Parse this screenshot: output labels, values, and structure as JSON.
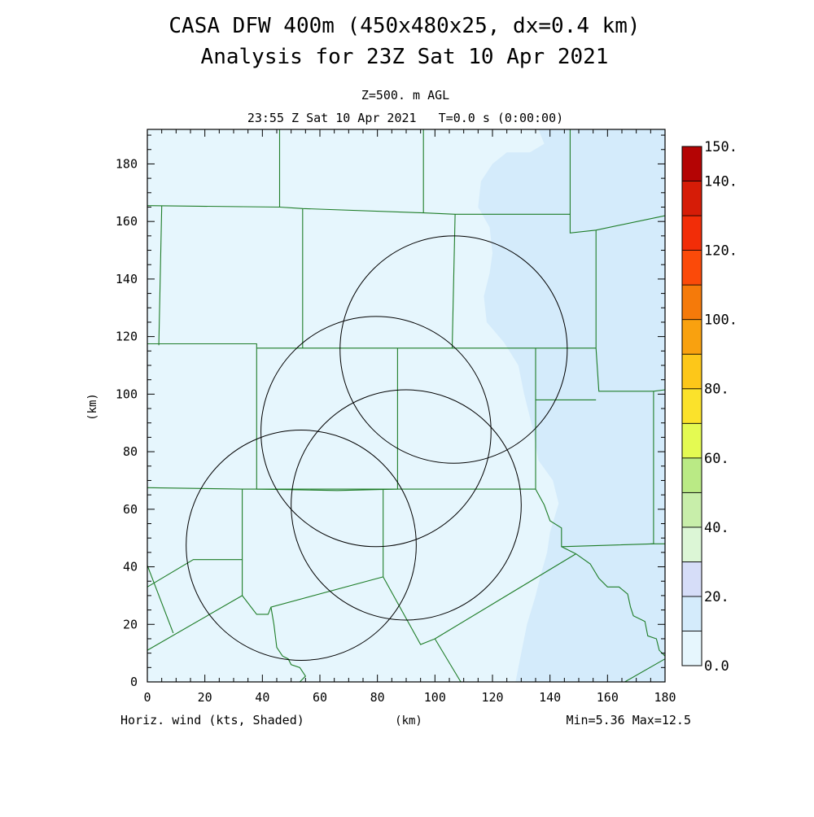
{
  "chart_data": {
    "type": "heatmap",
    "title": "CASA DFW 400m (450x480x25, dx=0.4 km)",
    "subtitle": "Analysis for 23Z Sat 10 Apr 2021",
    "level_label": "Z=500. m AGL",
    "time_label": "23:55 Z Sat 10 Apr 2021   T=0.0 s (0:00:00)",
    "xlabel": "(km)",
    "ylabel": "(km)",
    "xlim": [
      0,
      180
    ],
    "ylim": [
      0,
      192
    ],
    "x_ticks": [
      0,
      20,
      40,
      60,
      80,
      100,
      120,
      140,
      160,
      180
    ],
    "y_ticks": [
      0,
      20,
      40,
      60,
      80,
      100,
      120,
      140,
      160,
      180
    ],
    "x_tick_labels": [
      "0",
      "20",
      "40",
      "60",
      "80",
      "100",
      "120",
      "140",
      "160",
      "180"
    ],
    "y_tick_labels": [
      "0",
      "20",
      "40",
      "60",
      "80",
      "100",
      "120",
      "140",
      "160",
      "180"
    ],
    "grid": false,
    "field_label": "Horiz. wind (kts, Shaded)",
    "stats_label": "Min=5.36 Max=12.5",
    "colorbar": {
      "levels": [
        0,
        10,
        20,
        30,
        40,
        50,
        60,
        70,
        80,
        90,
        100,
        110,
        120,
        130,
        140,
        150
      ],
      "labels": [
        {
          "value": 0,
          "text": "0.0"
        },
        {
          "value": 20,
          "text": "20."
        },
        {
          "value": 40,
          "text": "40."
        },
        {
          "value": 60,
          "text": "60."
        },
        {
          "value": 80,
          "text": "80."
        },
        {
          "value": 100,
          "text": "100."
        },
        {
          "value": 120,
          "text": "120."
        },
        {
          "value": 140,
          "text": "140."
        },
        {
          "value": 150,
          "text": "150."
        }
      ],
      "colors": [
        "#e6f6fd",
        "#d4ebfb",
        "#d6ddf8",
        "#dcf6d6",
        "#c8eeaa",
        "#baea85",
        "#e4fa52",
        "#fbe22b",
        "#fdc719",
        "#f9a10f",
        "#f57a0a",
        "#fb4a09",
        "#f22d08",
        "#d61c07",
        "#b40404"
      ]
    },
    "shaded_regions": [
      {
        "level_range": [
          5.36,
          10
        ],
        "color": "#e6f6fd",
        "description_key": "base"
      },
      {
        "level_range": [
          10,
          12.5
        ],
        "color": "#d4ebfb",
        "outline": [
          [
            112,
            192
          ],
          [
            136,
            192
          ],
          [
            138,
            187
          ],
          [
            133,
            184
          ],
          [
            125,
            184
          ],
          [
            120,
            180
          ],
          [
            116,
            174
          ],
          [
            115,
            165
          ],
          [
            119,
            158
          ],
          [
            120,
            149
          ],
          [
            119,
            142
          ],
          [
            117,
            134
          ],
          [
            118,
            125
          ],
          [
            124,
            118
          ],
          [
            129,
            110
          ],
          [
            131,
            100
          ],
          [
            134,
            88
          ],
          [
            136,
            77
          ],
          [
            141,
            70
          ],
          [
            143,
            62
          ],
          [
            140,
            52
          ],
          [
            139,
            45
          ],
          [
            137,
            38
          ],
          [
            135,
            30
          ],
          [
            132,
            20
          ],
          [
            130,
            10
          ],
          [
            128,
            0
          ],
          [
            180,
            0
          ],
          [
            180,
            192
          ]
        ]
      }
    ],
    "range_rings": [
      {
        "center": [
          106.5,
          115.5
        ],
        "radius": 39.5
      },
      {
        "center": [
          79.5,
          87.0
        ],
        "radius": 40.0
      },
      {
        "center": [
          90.0,
          61.5
        ],
        "radius": 40.0
      },
      {
        "center": [
          53.5,
          47.5
        ],
        "radius": 40.0
      }
    ],
    "county_boundaries": [
      [
        [
          0,
          165.5
        ],
        [
          46,
          165
        ],
        [
          54,
          164.5
        ],
        [
          96,
          163
        ],
        [
          107,
          162.5
        ],
        [
          147,
          162.5
        ],
        [
          147,
          156
        ],
        [
          156,
          157
        ],
        [
          180,
          162
        ]
      ],
      [
        [
          46,
          192
        ],
        [
          46,
          165
        ]
      ],
      [
        [
          96,
          192
        ],
        [
          96,
          163
        ]
      ],
      [
        [
          147,
          192
        ],
        [
          147,
          162.5
        ]
      ],
      [
        [
          5,
          165.5
        ],
        [
          4,
          117
        ]
      ],
      [
        [
          54,
          164.5
        ],
        [
          54,
          116
        ]
      ],
      [
        [
          107,
          162.5
        ],
        [
          106,
          116
        ]
      ],
      [
        [
          156,
          157
        ],
        [
          156,
          116
        ],
        [
          157,
          101
        ],
        [
          176,
          101
        ],
        [
          180,
          101.5
        ]
      ],
      [
        [
          0,
          117.5
        ],
        [
          38,
          117.5
        ],
        [
          38,
          67
        ],
        [
          66,
          66.5
        ],
        [
          87,
          67
        ]
      ],
      [
        [
          38,
          116
        ],
        [
          54,
          116
        ],
        [
          106,
          116
        ],
        [
          135,
          116
        ],
        [
          156,
          116
        ]
      ],
      [
        [
          87,
          116
        ],
        [
          87,
          67
        ]
      ],
      [
        [
          135,
          116
        ],
        [
          135,
          67
        ]
      ],
      [
        [
          135,
          98
        ],
        [
          156,
          98
        ]
      ],
      [
        [
          0,
          67.5
        ],
        [
          33,
          67
        ],
        [
          87,
          67
        ],
        [
          135,
          67
        ]
      ],
      [
        [
          33,
          67
        ],
        [
          33,
          42.5
        ],
        [
          16,
          42.5
        ],
        [
          0,
          33
        ]
      ],
      [
        [
          33,
          42.5
        ],
        [
          33,
          30
        ]
      ],
      [
        [
          0,
          11
        ],
        [
          33,
          30
        ],
        [
          38,
          23.5
        ],
        [
          42,
          23.5
        ],
        [
          43,
          26
        ],
        [
          82,
          36.5
        ]
      ],
      [
        [
          82,
          36.5
        ],
        [
          82,
          67
        ]
      ],
      [
        [
          82,
          36.5
        ],
        [
          95,
          13
        ],
        [
          100,
          15
        ],
        [
          109,
          0
        ]
      ],
      [
        [
          9,
          17
        ],
        [
          0,
          40.5
        ]
      ],
      [
        [
          135,
          67
        ],
        [
          138,
          61.5
        ],
        [
          140,
          56
        ],
        [
          144,
          53.5
        ],
        [
          144,
          47
        ],
        [
          149,
          44.5
        ]
      ],
      [
        [
          100,
          15
        ],
        [
          149,
          44.5
        ]
      ],
      [
        [
          144,
          47
        ],
        [
          176,
          48
        ],
        [
          176,
          101
        ]
      ],
      [
        [
          149,
          44.5
        ],
        [
          154,
          41
        ],
        [
          157,
          36
        ],
        [
          160,
          33
        ],
        [
          164,
          33
        ],
        [
          167,
          30.5
        ],
        [
          168,
          26
        ],
        [
          169,
          23
        ],
        [
          173,
          21
        ],
        [
          174,
          16
        ],
        [
          177,
          15
        ],
        [
          178,
          11
        ],
        [
          180,
          9
        ]
      ],
      [
        [
          166,
          0
        ],
        [
          180,
          8
        ]
      ],
      [
        [
          175,
          48
        ],
        [
          180,
          48
        ]
      ],
      [
        [
          43,
          26
        ],
        [
          44,
          20
        ],
        [
          45,
          12
        ],
        [
          47,
          9
        ],
        [
          49,
          8
        ],
        [
          50,
          6
        ],
        [
          53,
          5
        ],
        [
          55,
          2
        ],
        [
          53,
          0
        ]
      ]
    ]
  }
}
